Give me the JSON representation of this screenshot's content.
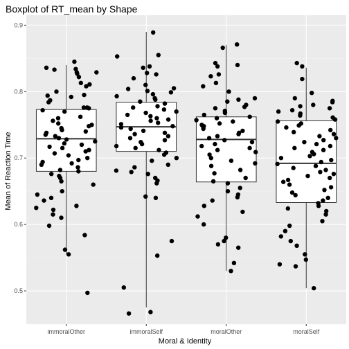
{
  "chart_data": {
    "type": "boxplot",
    "title": "Boxplot of RT_mean by Shape",
    "xlabel": "Moral & Identity",
    "ylabel": "Mean of Reaction Time",
    "categories": [
      "immoralOther",
      "immoralSelf",
      "moralOther",
      "moralSelf"
    ],
    "ylim": [
      0.45,
      0.915
    ],
    "yticks": [
      0.5,
      0.6,
      0.7,
      0.8,
      0.9
    ],
    "ytick_labels": [
      "0.5",
      "0.6",
      "0.7",
      "0.8",
      "0.9"
    ],
    "grid": true,
    "boxes": [
      {
        "category": "immoralOther",
        "min": 0.556,
        "q1": 0.68,
        "median": 0.729,
        "q3": 0.773,
        "max": 0.84
      },
      {
        "category": "immoralSelf",
        "min": 0.475,
        "q1": 0.71,
        "median": 0.747,
        "q3": 0.784,
        "max": 0.89
      },
      {
        "category": "moralOther",
        "min": 0.53,
        "q1": 0.664,
        "median": 0.728,
        "q3": 0.762,
        "max": 0.87
      },
      {
        "category": "moralSelf",
        "min": 0.504,
        "q1": 0.633,
        "median": 0.692,
        "q3": 0.756,
        "max": 0.836
      }
    ],
    "points": [
      {
        "category": "immoralOther",
        "y": [
          0.834,
          0.833,
          0.845,
          0.829,
          0.827,
          0.829,
          0.836,
          0.811,
          0.822,
          0.808,
          0.813,
          0.8,
          0.795,
          0.794,
          0.792,
          0.787,
          0.784,
          0.776,
          0.775,
          0.776,
          0.772,
          0.77,
          0.762,
          0.76,
          0.756,
          0.752,
          0.75,
          0.748,
          0.745,
          0.742,
          0.74,
          0.738,
          0.735,
          0.733,
          0.73,
          0.728,
          0.725,
          0.722,
          0.72,
          0.717,
          0.715,
          0.712,
          0.71,
          0.707,
          0.704,
          0.7,
          0.697,
          0.694,
          0.692,
          0.69,
          0.686,
          0.682,
          0.68,
          0.676,
          0.673,
          0.67,
          0.665,
          0.66,
          0.65,
          0.645,
          0.64,
          0.636,
          0.628,
          0.625,
          0.622,
          0.615,
          0.61,
          0.598,
          0.584,
          0.562,
          0.555,
          0.497
        ]
      },
      {
        "category": "immoralSelf",
        "y": [
          0.889,
          0.855,
          0.853,
          0.838,
          0.836,
          0.828,
          0.826,
          0.82,
          0.81,
          0.805,
          0.804,
          0.801,
          0.799,
          0.796,
          0.793,
          0.79,
          0.788,
          0.785,
          0.782,
          0.778,
          0.776,
          0.773,
          0.77,
          0.768,
          0.765,
          0.763,
          0.76,
          0.758,
          0.756,
          0.753,
          0.751,
          0.748,
          0.746,
          0.744,
          0.741,
          0.738,
          0.736,
          0.733,
          0.73,
          0.727,
          0.724,
          0.721,
          0.718,
          0.715,
          0.712,
          0.708,
          0.705,
          0.7,
          0.696,
          0.69,
          0.686,
          0.681,
          0.679,
          0.676,
          0.67,
          0.666,
          0.662,
          0.642,
          0.64,
          0.575,
          0.553,
          0.505,
          0.468,
          0.466
        ]
      },
      {
        "category": "moralOther",
        "y": [
          0.871,
          0.866,
          0.843,
          0.84,
          0.838,
          0.826,
          0.823,
          0.813,
          0.808,
          0.8,
          0.79,
          0.788,
          0.785,
          0.78,
          0.777,
          0.775,
          0.771,
          0.768,
          0.765,
          0.762,
          0.76,
          0.757,
          0.755,
          0.752,
          0.75,
          0.748,
          0.746,
          0.744,
          0.741,
          0.738,
          0.736,
          0.733,
          0.73,
          0.727,
          0.724,
          0.721,
          0.718,
          0.715,
          0.712,
          0.709,
          0.705,
          0.7,
          0.696,
          0.692,
          0.688,
          0.682,
          0.677,
          0.67,
          0.665,
          0.662,
          0.655,
          0.65,
          0.645,
          0.641,
          0.636,
          0.628,
          0.619,
          0.612,
          0.6,
          0.58,
          0.575,
          0.57,
          0.565,
          0.542,
          0.53
        ]
      },
      {
        "category": "moralSelf",
        "y": [
          0.843,
          0.838,
          0.819,
          0.798,
          0.79,
          0.786,
          0.784,
          0.78,
          0.778,
          0.775,
          0.772,
          0.77,
          0.767,
          0.764,
          0.761,
          0.758,
          0.755,
          0.752,
          0.749,
          0.746,
          0.742,
          0.739,
          0.736,
          0.733,
          0.73,
          0.727,
          0.724,
          0.721,
          0.718,
          0.715,
          0.712,
          0.709,
          0.706,
          0.703,
          0.7,
          0.697,
          0.694,
          0.691,
          0.688,
          0.685,
          0.682,
          0.679,
          0.676,
          0.673,
          0.67,
          0.667,
          0.664,
          0.66,
          0.656,
          0.652,
          0.648,
          0.644,
          0.64,
          0.636,
          0.632,
          0.628,
          0.624,
          0.62,
          0.615,
          0.605,
          0.598,
          0.59,
          0.582,
          0.575,
          0.568,
          0.555,
          0.547,
          0.54,
          0.537,
          0.504
        ]
      }
    ],
    "colors": {
      "panel_background": "#ebebeb",
      "grid_major": "#ffffff",
      "grid_minor": "#f2f2f2",
      "box_fill": "#ffffff",
      "box_line": "#333333",
      "point": "#000000",
      "text": "#000000",
      "tick_text": "#4d4d4d"
    }
  }
}
